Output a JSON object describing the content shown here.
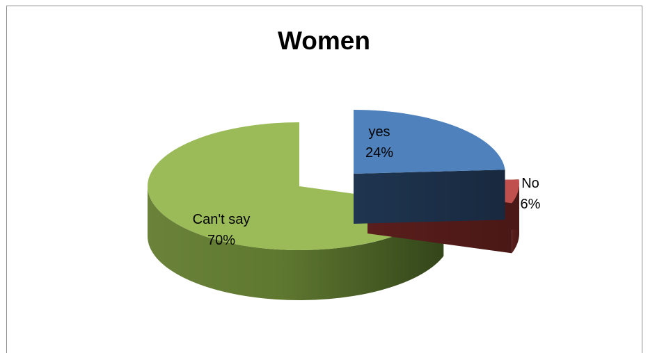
{
  "chart_data": {
    "type": "pie",
    "title": "Women",
    "slices": [
      {
        "label": "yes",
        "value": 24,
        "value_text": "24%",
        "color": "#4F81BD",
        "exploded": true
      },
      {
        "label": "No",
        "value": 6,
        "value_text": "6%",
        "color": "#C0504D",
        "exploded": true
      },
      {
        "label": "Can't say",
        "value": 70,
        "value_text": "70%",
        "color": "#9BBB59",
        "exploded": false
      }
    ],
    "style": "3d",
    "legend": "none",
    "data_labels": "category and percentage"
  }
}
